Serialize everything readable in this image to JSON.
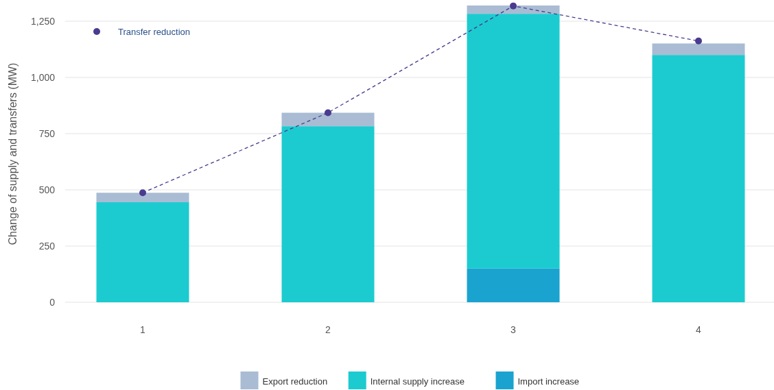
{
  "chart_data": {
    "type": "bar",
    "stacked": true,
    "categories": [
      "1",
      "2",
      "3",
      "4"
    ],
    "ylabel": "Change of supply and transfers (MW)",
    "ylim": [
      0,
      1320
    ],
    "yticks": [
      {
        "value": 0,
        "label": "0"
      },
      {
        "value": 250,
        "label": "250"
      },
      {
        "value": 500,
        "label": "500"
      },
      {
        "value": 750,
        "label": "750"
      },
      {
        "value": 1000,
        "label": "1,000"
      },
      {
        "value": 1250,
        "label": "1,250"
      }
    ],
    "grid": "y",
    "legend": "bottom",
    "series": [
      {
        "name": "Import increase",
        "color": "#1ba3d0",
        "values": [
          null,
          null,
          150,
          null
        ]
      },
      {
        "name": "Internal supply increase",
        "color": "#1ccbd0",
        "values": [
          445,
          783,
          1133,
          1100
        ]
      },
      {
        "name": "Export reduction",
        "color": "#a9bcd3",
        "values": [
          42,
          60,
          37,
          51
        ]
      },
      {
        "name": "Transfer reduction",
        "type": "line",
        "color": "#4a3b8f",
        "values": [
          487,
          843,
          1318,
          1162
        ],
        "marker": "circle",
        "line_style": "dashed"
      }
    ]
  }
}
